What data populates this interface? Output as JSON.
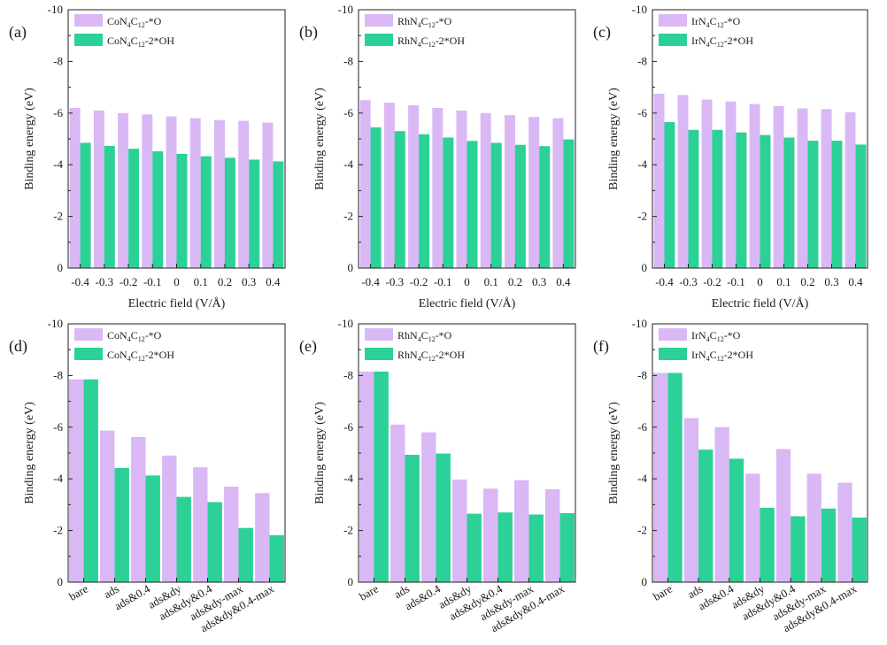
{
  "colors": {
    "o_series": "#D9B8F5",
    "oh_series": "#2BD196",
    "axis": "#222222"
  },
  "chart_data": [
    {
      "panel": "(a)",
      "type": "bar",
      "categories": [
        "-0.4",
        "-0.3",
        "-0.2",
        "-0.1",
        "0",
        "0.1",
        "0.2",
        "0.3",
        "0.4"
      ],
      "series": [
        {
          "name": "CoN4C12-*O",
          "metal": "Co",
          "suffix": "-*O",
          "values": [
            -6.2,
            -6.1,
            -6.0,
            -5.95,
            -5.87,
            -5.8,
            -5.73,
            -5.7,
            -5.63
          ]
        },
        {
          "name": "CoN4C12-2*OH",
          "metal": "Co",
          "suffix": "-2*OH",
          "values": [
            -4.85,
            -4.73,
            -4.62,
            -4.52,
            -4.42,
            -4.33,
            -4.27,
            -4.2,
            -4.13
          ]
        }
      ],
      "ylabel": "Binding energy (eV)",
      "xlabel": "Electric field (V/Å)",
      "yticks": [
        "-10",
        "-8",
        "-6",
        "-4",
        "-2",
        "0"
      ],
      "ylim": [
        0,
        -10
      ]
    },
    {
      "panel": "(b)",
      "type": "bar",
      "categories": [
        "-0.4",
        "-0.3",
        "-0.2",
        "-0.1",
        "0",
        "0.1",
        "0.2",
        "0.3",
        "0.4"
      ],
      "series": [
        {
          "name": "RhN4C12-*O",
          "metal": "Rh",
          "suffix": "-*O",
          "values": [
            -6.5,
            -6.4,
            -6.3,
            -6.2,
            -6.1,
            -6.0,
            -5.92,
            -5.85,
            -5.8
          ]
        },
        {
          "name": "RhN4C12-2*OH",
          "metal": "Rh",
          "suffix": "-2*OH",
          "values": [
            -5.45,
            -5.3,
            -5.18,
            -5.05,
            -4.92,
            -4.85,
            -4.77,
            -4.72,
            -4.98
          ]
        }
      ],
      "ylabel": "Binding energy (eV)",
      "xlabel": "Electric field (V/Å)",
      "yticks": [
        "-10",
        "-8",
        "-6",
        "-4",
        "-2",
        "0"
      ],
      "ylim": [
        0,
        -10
      ]
    },
    {
      "panel": "(c)",
      "type": "bar",
      "categories": [
        "-0.4",
        "-0.3",
        "-0.2",
        "-0.1",
        "0",
        "0.1",
        "0.2",
        "0.3",
        "0.4"
      ],
      "series": [
        {
          "name": "IrN4C12-*O",
          "metal": "Ir",
          "suffix": "-*O",
          "values": [
            -6.75,
            -6.7,
            -6.52,
            -6.45,
            -6.35,
            -6.27,
            -6.18,
            -6.15,
            -6.03
          ]
        },
        {
          "name": "IrN4C12-2*OH",
          "metal": "Ir",
          "suffix": "-2*OH",
          "values": [
            -5.65,
            -5.35,
            -5.35,
            -5.25,
            -5.15,
            -5.05,
            -4.93,
            -4.93,
            -4.78
          ]
        }
      ],
      "ylabel": "Binding energy (eV)",
      "xlabel": "Electric field (V/Å)",
      "yticks": [
        "-10",
        "-8",
        "-6",
        "-4",
        "-2",
        "0"
      ],
      "ylim": [
        0,
        -10
      ]
    },
    {
      "panel": "(d)",
      "type": "bar",
      "categories": [
        "bare",
        "ads",
        "ads&0.4",
        "ads&dy",
        "ads&dy&0.4",
        "ads&dy-max",
        "ads&dy&0.4-max"
      ],
      "series": [
        {
          "name": "CoN4C12-*O",
          "metal": "Co",
          "suffix": "-*O",
          "values": [
            -7.85,
            -5.87,
            -5.62,
            -4.9,
            -4.45,
            -3.7,
            -3.45
          ]
        },
        {
          "name": "CoN4C12-2*OH",
          "metal": "Co",
          "suffix": "-2*OH",
          "values": [
            -7.85,
            -4.42,
            -4.13,
            -3.3,
            -3.1,
            -2.1,
            -1.82
          ]
        }
      ],
      "ylabel": "Binding energy (eV)",
      "xlabel": "",
      "yticks": [
        "-10",
        "-8",
        "-6",
        "-4",
        "-2",
        "0"
      ],
      "ylim": [
        0,
        -10
      ]
    },
    {
      "panel": "(e)",
      "type": "bar",
      "categories": [
        "bare",
        "ads",
        "ads&0.4",
        "ads&dy",
        "ads&dy&0.4",
        "ads&dy-max",
        "ads&dy&0.4-max"
      ],
      "series": [
        {
          "name": "RhN4C12-*O",
          "metal": "Rh",
          "suffix": "-*O",
          "values": [
            -8.15,
            -6.1,
            -5.8,
            -3.97,
            -3.62,
            -3.95,
            -3.6
          ]
        },
        {
          "name": "RhN4C12-2*OH",
          "metal": "Rh",
          "suffix": "-2*OH",
          "values": [
            -8.15,
            -4.93,
            -4.98,
            -2.65,
            -2.7,
            -2.62,
            -2.67
          ]
        }
      ],
      "ylabel": "Binding energy (eV)",
      "xlabel": "",
      "yticks": [
        "-10",
        "-8",
        "-6",
        "-4",
        "-2",
        "0"
      ],
      "ylim": [
        0,
        -10
      ]
    },
    {
      "panel": "(f)",
      "type": "bar",
      "categories": [
        "bare",
        "ads",
        "ads&0.4",
        "ads&dy",
        "ads&dy&0.4",
        "ads&dy-max",
        "ads&dy&0.4-max"
      ],
      "series": [
        {
          "name": "IrN4C12-*O",
          "metal": "Ir",
          "suffix": "-*O",
          "values": [
            -8.1,
            -6.35,
            -6.0,
            -4.2,
            -5.15,
            -4.2,
            -3.85
          ]
        },
        {
          "name": "IrN4C12-2*OH",
          "metal": "Ir",
          "suffix": "-2*OH",
          "values": [
            -8.1,
            -5.13,
            -4.78,
            -2.88,
            -2.55,
            -2.85,
            -2.5
          ]
        }
      ],
      "ylabel": "Binding energy (eV)",
      "xlabel": "",
      "yticks": [
        "-10",
        "-8",
        "-6",
        "-4",
        "-2",
        "0"
      ],
      "ylim": [
        0,
        -10
      ]
    }
  ]
}
